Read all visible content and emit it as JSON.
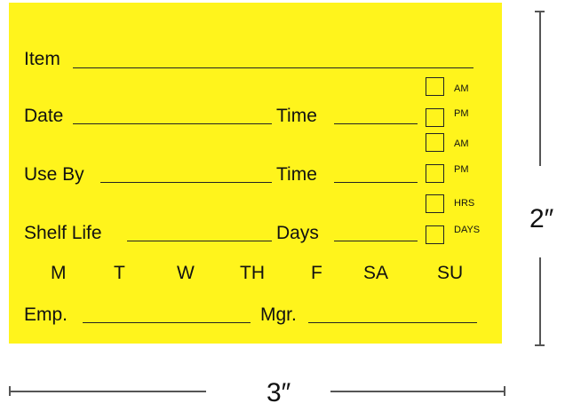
{
  "label": {
    "background_color": "#fff41c",
    "item_label": "Item",
    "date_label": "Date",
    "time_label": "Time",
    "use_by_label": "Use By",
    "shelf_life_label": "Shelf Life",
    "days_label": "Days",
    "checkboxes": [
      "AM",
      "PM",
      "AM",
      "PM",
      "HRS",
      "DAYS"
    ],
    "weekdays": [
      "M",
      "T",
      "W",
      "TH",
      "F",
      "SA",
      "SU"
    ],
    "emp_label": "Emp.",
    "mgr_label": "Mgr."
  },
  "dimensions": {
    "height": "2″",
    "width": "3″"
  }
}
